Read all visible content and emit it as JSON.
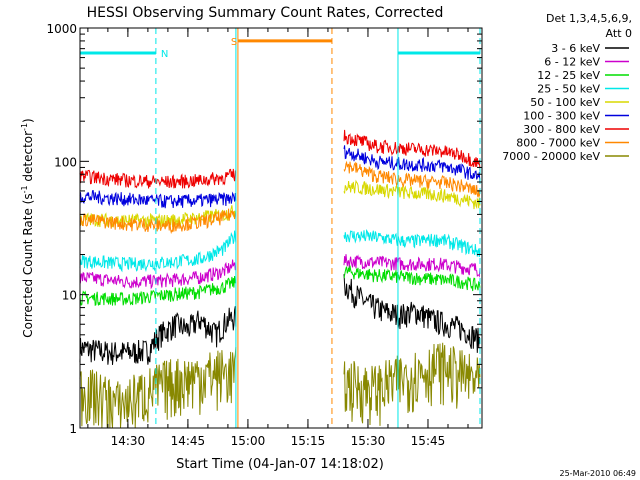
{
  "chart_data": {
    "type": "line",
    "title": "HESSI Observing Summary Count Rates, Corrected",
    "xlabel": "Start Time (04-Jan-07 14:18:02)",
    "ylabel_main": "Corrected Count Rate (s",
    "ylabel_sup1": "-1",
    "ylabel_mid": " detector",
    "ylabel_sup2": "-1",
    "ylabel_end": ")",
    "ylog": true,
    "ylim": [
      1,
      1000
    ],
    "xlim": [
      "14:18:02",
      "15:58:30"
    ],
    "x_ticks": [
      "14:30",
      "14:45",
      "15:00",
      "15:15",
      "15:30",
      "15:45"
    ],
    "y_ticks": [
      "1",
      "10",
      "100",
      "1000"
    ],
    "legend_header_1": "Det 1,3,4,5,6,9,",
    "legend_header_2": "Att 0",
    "legend_position": "right",
    "timestamp": "25-Mar-2010 06:49",
    "data_gap": [
      "14:57:30",
      "15:24:30"
    ],
    "series": [
      {
        "name": "3 - 6 keV",
        "color": "#000000",
        "segments": [
          {
            "x": [
              "14:18",
              "14:25",
              "14:30",
              "14:35",
              "14:38",
              "14:42",
              "14:45",
              "14:48",
              "14:52",
              "14:55",
              "14:57"
            ],
            "y": [
              4,
              3.7,
              3.7,
              3.8,
              5,
              6,
              5.5,
              6.5,
              5,
              6.5,
              6.8
            ]
          },
          {
            "x": [
              "15:24",
              "15:27",
              "15:30",
              "15:34",
              "15:38",
              "15:42",
              "15:46",
              "15:50",
              "15:54",
              "15:58"
            ],
            "y": [
              12,
              10,
              8.5,
              7.5,
              7,
              7.5,
              6.5,
              6,
              5.5,
              4.5
            ]
          }
        ]
      },
      {
        "name": "6 - 12 keV",
        "color": "#cc00cc",
        "segments": [
          {
            "x": [
              "14:18",
              "14:30",
              "14:40",
              "14:48",
              "14:54",
              "14:57"
            ],
            "y": [
              13.5,
              12.5,
              12.8,
              13.5,
              15,
              17
            ]
          },
          {
            "x": [
              "15:24",
              "15:32",
              "15:40",
              "15:48",
              "15:54",
              "15:58"
            ],
            "y": [
              18,
              17.5,
              17,
              17,
              16,
              15.5
            ]
          }
        ]
      },
      {
        "name": "12 - 25 keV",
        "color": "#00dd00",
        "segments": [
          {
            "x": [
              "14:18",
              "14:30",
              "14:40",
              "14:48",
              "14:54",
              "14:57"
            ],
            "y": [
              9.5,
              9.3,
              10,
              10.5,
              11.5,
              12.5
            ]
          },
          {
            "x": [
              "15:24",
              "15:32",
              "15:40",
              "15:48",
              "15:54",
              "15:58"
            ],
            "y": [
              15,
              14,
              13.5,
              13,
              12.5,
              11.5
            ]
          }
        ]
      },
      {
        "name": "25 - 50 keV",
        "color": "#00e8e8",
        "segments": [
          {
            "x": [
              "14:18",
              "14:30",
              "14:40",
              "14:48",
              "14:54",
              "14:57"
            ],
            "y": [
              18,
              17,
              17.5,
              18.5,
              22,
              28
            ]
          },
          {
            "x": [
              "15:24",
              "15:32",
              "15:40",
              "15:48",
              "15:54",
              "15:58"
            ],
            "y": [
              28,
              27,
              25,
              26,
              23,
              21
            ]
          }
        ]
      },
      {
        "name": "50 - 100 keV",
        "color": "#d8d800",
        "segments": [
          {
            "x": [
              "14:18",
              "14:30",
              "14:40",
              "14:48",
              "14:54",
              "14:57"
            ],
            "y": [
              37,
              36,
              36,
              38,
              40,
              43
            ]
          },
          {
            "x": [
              "15:24",
              "15:32",
              "15:40",
              "15:48",
              "15:54",
              "15:58"
            ],
            "y": [
              65,
              62,
              58,
              56,
              52,
              48
            ]
          }
        ]
      },
      {
        "name": "100 - 300 keV",
        "color": "#0000dd",
        "segments": [
          {
            "x": [
              "14:18",
              "14:30",
              "14:40",
              "14:48",
              "14:54",
              "14:57"
            ],
            "y": [
              55,
              52,
              50,
              51,
              52,
              53
            ]
          },
          {
            "x": [
              "15:24",
              "15:32",
              "15:40",
              "15:48",
              "15:54",
              "15:58"
            ],
            "y": [
              120,
              100,
              95,
              93,
              85,
              75
            ]
          }
        ]
      },
      {
        "name": "300 - 800 keV",
        "color": "#ee0000",
        "segments": [
          {
            "x": [
              "14:18",
              "14:30",
              "14:40",
              "14:48",
              "14:54",
              "14:57"
            ],
            "y": [
              78,
              72,
              70,
              72,
              76,
              80
            ]
          },
          {
            "x": [
              "15:24",
              "15:32",
              "15:40",
              "15:48",
              "15:54",
              "15:58"
            ],
            "y": [
              155,
              130,
              125,
              120,
              110,
              95
            ]
          }
        ]
      },
      {
        "name": "800 - 7000 keV",
        "color": "#ff8800",
        "segments": [
          {
            "x": [
              "14:18",
              "14:30",
              "14:40",
              "14:48",
              "14:54",
              "14:57"
            ],
            "y": [
              37,
              34,
              33,
              35,
              38,
              42
            ]
          },
          {
            "x": [
              "15:24",
              "15:32",
              "15:40",
              "15:48",
              "15:54",
              "15:58"
            ],
            "y": [
              95,
              78,
              72,
              70,
              65,
              58
            ]
          }
        ]
      },
      {
        "name": "7000 - 20000 keV",
        "color": "#888800",
        "segments": [
          {
            "x": [
              "14:18",
              "14:28",
              "14:40",
              "14:48",
              "14:57"
            ],
            "y": [
              2,
              1.5,
              2.2,
              2.5,
              2.7
            ]
          },
          {
            "x": [
              "15:24",
              "15:32",
              "15:40",
              "15:48",
              "15:58"
            ],
            "y": [
              2.2,
              2,
              2.5,
              3,
              2.2
            ]
          }
        ]
      }
    ],
    "flag_bands": [
      {
        "label": "N",
        "color": "#00e8e8",
        "start": "14:18:02",
        "end": "14:37:00",
        "level": 650
      },
      {
        "label": "S",
        "color": "#ff8800",
        "start": "14:57:30",
        "end": "15:21:00",
        "level": 800
      },
      {
        "label": "",
        "color": "#00e8e8",
        "start": "15:37:30",
        "end": "15:58:00",
        "level": 650
      }
    ],
    "solid_markers": [
      {
        "time": "14:57:30",
        "color": "#ff8800"
      },
      {
        "time": "14:57:00",
        "color": "#00e8e8"
      },
      {
        "time": "15:37:30",
        "color": "#00e8e8"
      }
    ],
    "dashed_markers": [
      {
        "time": "14:18:02",
        "color": "#00e8e8"
      },
      {
        "time": "14:37:00",
        "color": "#00e8e8"
      },
      {
        "time": "15:21:00",
        "color": "#ff8800"
      },
      {
        "time": "15:58:00",
        "color": "#00e8e8"
      }
    ]
  }
}
